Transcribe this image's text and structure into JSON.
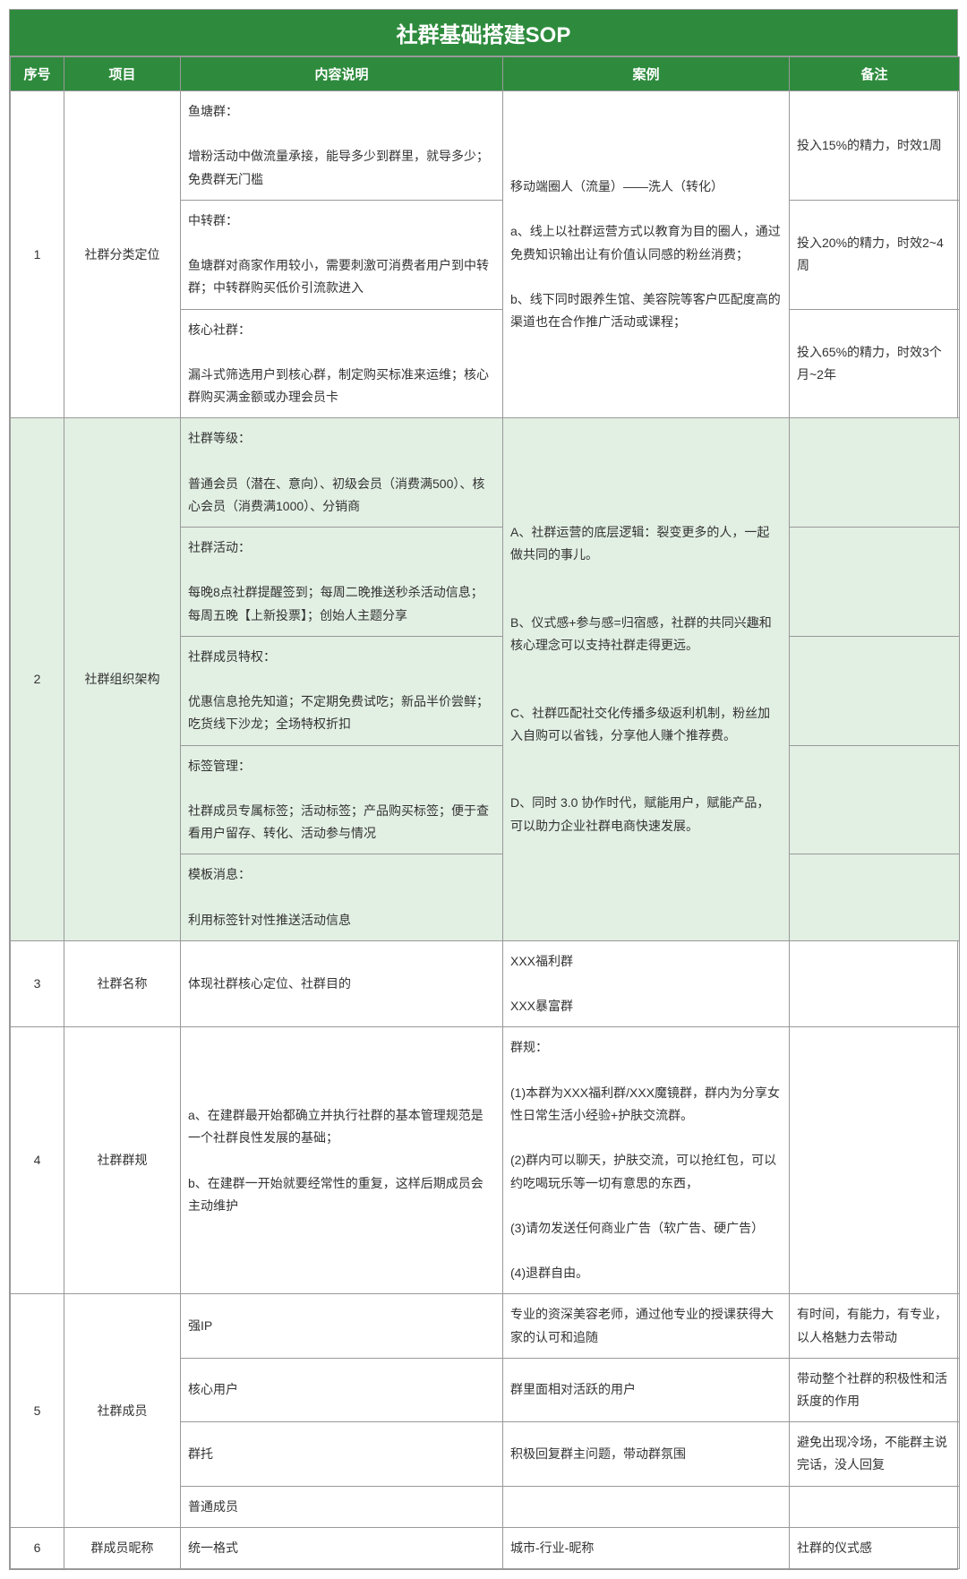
{
  "title": "社群基础搭建SOP",
  "headers": {
    "num": "序号",
    "project": "项目",
    "content": "内容说明",
    "case": "案例",
    "remark": "备注"
  },
  "colors": {
    "header_bg": "#2e8b3d",
    "header_text": "#ffffff",
    "section2_bg": "#e2efe3",
    "border": "#999999",
    "text": "#333333"
  },
  "section1": {
    "num": "1",
    "project": "社群分类定位",
    "rows": [
      {
        "content": "鱼塘群：\n\n增粉活动中做流量承接，能导多少到群里，就导多少；免费群无门槛",
        "remark": "投入15%的精力，时效1周"
      },
      {
        "content": "中转群：\n\n鱼塘群对商家作用较小，需要刺激可消费者用户到中转群；中转群购买低价引流款进入",
        "remark": "投入20%的精力，时效2~4周"
      },
      {
        "content": "核心社群：\n\n漏斗式筛选用户到核心群，制定购买标准来运维；核心群购买满金额或办理会员卡",
        "remark": "投入65%的精力，时效3个月~2年"
      }
    ],
    "case": "移动端圈人（流量）——洗人（转化）\n\na、线上以社群运营方式以教育为目的圈人，通过免费知识输出让有价值认同感的粉丝消费；\n\nb、线下同时跟养生馆、美容院等客户匹配度高的渠道也在合作推广活动或课程；"
  },
  "section2": {
    "num": "2",
    "project": "社群组织架构",
    "rows": [
      {
        "content": "社群等级：\n\n普通会员（潜在、意向）、初级会员（消费满500）、核心会员（消费满1000）、分销商"
      },
      {
        "content": "社群活动：\n\n每晚8点社群提醒签到；每周二晚推送秒杀活动信息；每周五晚【上新投票】；创始人主题分享"
      },
      {
        "content": "社群成员特权：\n\n优惠信息抢先知道；不定期免费试吃；新品半价尝鲜；吃货线下沙龙；全场特权折扣"
      },
      {
        "content": "标签管理：\n\n社群成员专属标签；活动标签；产品购买标签；便于查看用户留存、转化、活动参与情况"
      },
      {
        "content": "模板消息：\n\n利用标签针对性推送活动信息"
      }
    ],
    "case": "A、社群运营的底层逻辑：裂变更多的人，一起做共同的事儿。\n\n\nB、仪式感+参与感=归宿感，社群的共同兴趣和核心理念可以支持社群走得更远。\n\n\nC、社群匹配社交化传播多级返利机制，粉丝加入自购可以省钱，分享他人赚个推荐费。\n\n\nD、同时 3.0 协作时代，赋能用户，赋能产品，可以助力企业社群电商快速发展。"
  },
  "section3": {
    "num": "3",
    "project": "社群名称",
    "content": "体现社群核心定位、社群目的",
    "case": "XXX福利群\n\nXXX暴富群",
    "remark": ""
  },
  "section4": {
    "num": "4",
    "project": "社群群规",
    "content": "a、在建群最开始都确立并执行社群的基本管理规范是一个社群良性发展的基础；\n\nb、在建群一开始就要经常性的重复，这样后期成员会主动维护",
    "case": "群规：\n\n(1)本群为XXX福利群/XXX魔镜群，群内为分享女性日常生活小经验+护肤交流群。\n\n(2)群内可以聊天，护肤交流，可以抢红包，可以约吃喝玩乐等一切有意思的东西，\n\n(3)请勿发送任何商业广告（软广告、硬广告）\n\n(4)退群自由。",
    "remark": ""
  },
  "section5": {
    "num": "5",
    "project": "社群成员",
    "rows": [
      {
        "content": "强IP",
        "case": "专业的资深美容老师，通过他专业的授课获得大家的认可和追随",
        "remark": "有时间，有能力，有专业，以人格魅力去带动"
      },
      {
        "content": "核心用户",
        "case": "群里面相对活跃的用户",
        "remark": "带动整个社群的积极性和活跃度的作用"
      },
      {
        "content": "群托",
        "case": "积极回复群主问题，带动群氛围",
        "remark": "避免出现冷场，不能群主说完话，没人回复"
      },
      {
        "content": "普通成员",
        "case": "",
        "remark": ""
      }
    ]
  },
  "section6": {
    "num": "6",
    "project": "群成员昵称",
    "content": "统一格式",
    "case": "城市-行业-昵称",
    "remark": "社群的仪式感"
  }
}
